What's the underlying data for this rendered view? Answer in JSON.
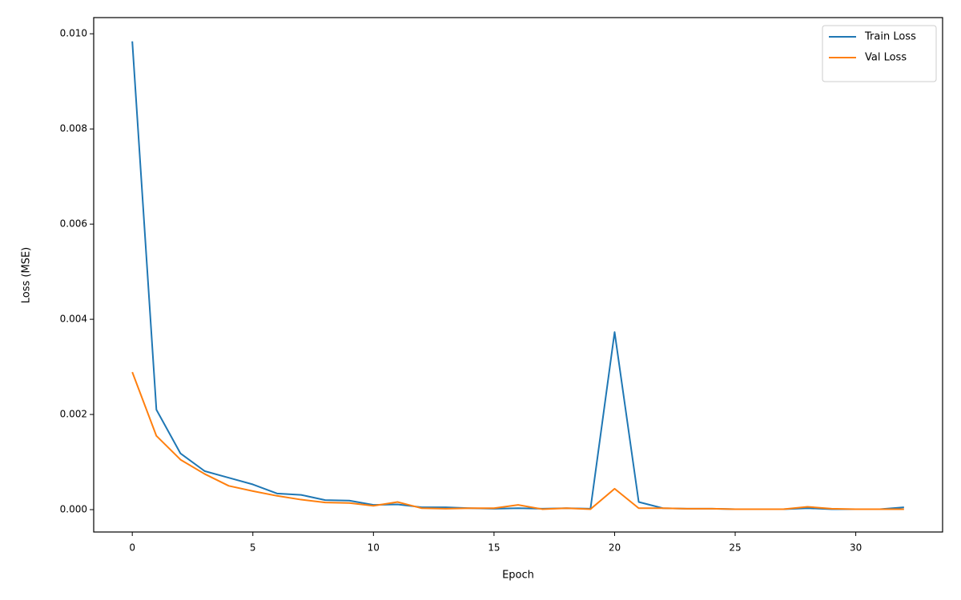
{
  "chart_data": {
    "type": "line",
    "xlabel": "Epoch",
    "ylabel": "Loss (MSE)",
    "x": [
      0,
      1,
      2,
      3,
      4,
      5,
      6,
      7,
      8,
      9,
      10,
      11,
      12,
      13,
      14,
      15,
      16,
      17,
      18,
      19,
      20,
      21,
      22,
      23,
      24,
      25,
      26,
      27,
      28,
      29,
      30,
      31,
      32
    ],
    "series": [
      {
        "name": "Train Loss",
        "color": "#1f77b4",
        "values": [
          0.00984,
          0.0021,
          0.00118,
          0.00081,
          0.00067,
          0.00053,
          0.00034,
          0.00031,
          0.0002,
          0.00019,
          0.0001,
          0.00011,
          5e-05,
          5e-05,
          3e-05,
          2e-05,
          3e-05,
          2e-05,
          3e-05,
          2e-05,
          0.00373,
          0.00016,
          3e-05,
          2e-05,
          2e-05,
          1e-05,
          1e-05,
          1e-05,
          3e-05,
          1e-05,
          1e-05,
          1e-05,
          5e-05
        ]
      },
      {
        "name": "Val Loss",
        "color": "#ff7f0e",
        "values": [
          0.00289,
          0.00155,
          0.00105,
          0.00075,
          0.0005,
          0.00039,
          0.00029,
          0.00021,
          0.00015,
          0.00014,
          8e-05,
          0.00016,
          3e-05,
          2e-05,
          3e-05,
          3e-05,
          0.0001,
          1e-05,
          3e-05,
          1e-05,
          0.00044,
          3e-05,
          3e-05,
          2e-05,
          2e-05,
          1e-05,
          1e-05,
          1e-05,
          6e-05,
          2e-05,
          1e-05,
          1e-05,
          1e-05
        ]
      }
    ],
    "xlim": [
      -1.6,
      33.6
    ],
    "xticks": [
      0,
      5,
      10,
      15,
      20,
      25,
      30
    ],
    "ylim": [
      -0.00047,
      0.01034
    ],
    "yticks": [
      {
        "value": 0,
        "label": "0.000"
      },
      {
        "value": 0.002,
        "label": "0.002"
      },
      {
        "value": 0.004,
        "label": "0.004"
      },
      {
        "value": 0.006,
        "label": "0.006"
      },
      {
        "value": 0.008,
        "label": "0.008"
      },
      {
        "value": 0.01,
        "label": "0.010"
      }
    ],
    "legend": "upper right",
    "grid": false
  }
}
